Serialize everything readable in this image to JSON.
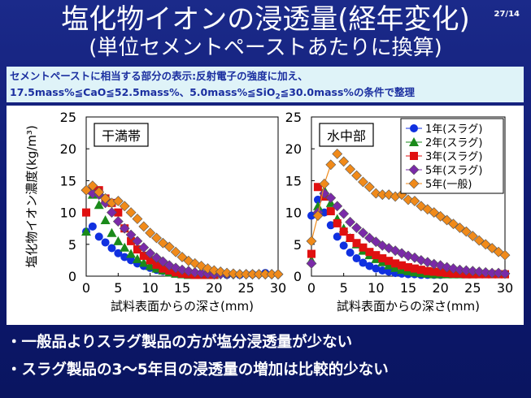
{
  "slide": {
    "title": "塩化物イオンの浸透量(経年変化)",
    "subtitle": "(単位セメントペーストあたりに換算)",
    "page": "27/14"
  },
  "note": {
    "line1": "セメントペーストに相当する部分の表示:反射電子の強度に加え、",
    "line2_a": "17.5mass%≦CaO≦52.5mass%、5.0mass%≦SiO",
    "line2_sub": "2",
    "line2_b": "≦30.0mass%の条件で整理"
  },
  "bullets": [
    "・一般品よりスラグ製品の方が塩分浸透量が少ない",
    "・スラグ製品の3〜5年目の浸透量の増加は比較的少ない"
  ],
  "chart_data": [
    {
      "type": "scatter",
      "panel_label": "干満帯",
      "ylabel": "塩化物イオン濃度(kg/m³)",
      "xlabel": "試料表面からの深さ(mm)",
      "xlim": [
        0,
        30
      ],
      "ylim": [
        0,
        25
      ],
      "xticks": [
        0,
        5,
        10,
        15,
        20,
        25,
        30
      ],
      "yticks": [
        0,
        5,
        10,
        15,
        20,
        25
      ],
      "series": [
        {
          "name": "1年(スラグ)",
          "color": "#1030e0",
          "marker": "circle",
          "x": [
            0,
            1,
            2,
            3,
            4,
            5,
            6,
            7,
            8,
            9,
            10,
            11,
            12,
            13,
            14,
            15,
            16,
            17,
            18,
            19,
            20,
            22,
            24,
            26,
            28
          ],
          "y": [
            7,
            7.8,
            6.2,
            5.3,
            4.4,
            3.6,
            3,
            2.5,
            2,
            1.6,
            1.3,
            1.0,
            0.8,
            0.6,
            0.5,
            0.4,
            0.3,
            0.3,
            0.2,
            0.2,
            0.2,
            0.2,
            0.2,
            0.3,
            0.5
          ]
        },
        {
          "name": "2年(スラグ)",
          "color": "#1a8a1a",
          "marker": "triangle",
          "x": [
            0,
            1,
            2,
            3,
            4,
            5,
            6,
            7,
            8,
            9,
            10,
            11,
            12,
            13,
            14,
            15,
            16,
            17,
            18,
            19,
            20
          ],
          "y": [
            7,
            12.8,
            11.2,
            8.8,
            6.8,
            5.5,
            4.5,
            3.5,
            2.7,
            2.1,
            1.6,
            1.2,
            0.9,
            0.6,
            0.4,
            0.3,
            0.2,
            0.2,
            0.2,
            0.2,
            0.2
          ]
        },
        {
          "name": "3年(スラグ)",
          "color": "#e01010",
          "marker": "square",
          "x": [
            0,
            1,
            2,
            3,
            4,
            5,
            6,
            7,
            8,
            9,
            10,
            11,
            12,
            13,
            14,
            15,
            16,
            17,
            18,
            19,
            20
          ],
          "y": [
            10,
            13.5,
            13.5,
            12.2,
            11.5,
            10,
            7.5,
            5.5,
            4.2,
            3.2,
            2.5,
            1.8,
            1.2,
            0.9,
            0.6,
            0.4,
            0.3,
            0.2,
            0.2,
            0.2,
            0.2
          ]
        },
        {
          "name": "5年(スラグ)",
          "color": "#7a2aa8",
          "marker": "diamond",
          "x": [
            0,
            1,
            2,
            3,
            4,
            5,
            6,
            7,
            8,
            9,
            10,
            11,
            12,
            13,
            14,
            15,
            16,
            17,
            18,
            19,
            20,
            21,
            22,
            23,
            24,
            25,
            26,
            27,
            28,
            29,
            30
          ],
          "y": [
            13.5,
            13,
            12.8,
            11.5,
            10,
            8.6,
            7.5,
            6.5,
            5.5,
            4.5,
            3.6,
            2.9,
            2.3,
            1.7,
            1.3,
            1.0,
            0.8,
            0.6,
            0.5,
            0.4,
            0.3,
            0.3,
            0.3,
            0.3,
            0.3,
            0.3,
            0.3,
            0.3,
            0.3,
            0.3,
            0.3
          ]
        },
        {
          "name": "5年(一般)",
          "color": "#f08a1a",
          "marker": "diamond",
          "x": [
            0,
            1,
            2,
            3,
            4,
            5,
            6,
            7,
            8,
            9,
            10,
            11,
            12,
            13,
            14,
            15,
            16,
            17,
            18,
            19,
            20,
            21,
            22,
            23,
            24,
            25,
            26,
            27,
            28,
            29,
            30
          ],
          "y": [
            13.5,
            14.2,
            13.2,
            12.2,
            11.5,
            11.8,
            11,
            10,
            9,
            7.8,
            6.8,
            6,
            5.2,
            4.6,
            3.8,
            3,
            2.4,
            2,
            1.6,
            1.2,
            0.9,
            0.7,
            0.5,
            0.4,
            0.3,
            0.3,
            0.3,
            0.3,
            0.3,
            0.3,
            0.3
          ]
        }
      ]
    },
    {
      "type": "scatter",
      "panel_label": "水中部",
      "xlabel": "試料表面からの深さ(mm)",
      "xlim": [
        0,
        30
      ],
      "ylim": [
        0,
        25
      ],
      "xticks": [
        0,
        5,
        10,
        15,
        20,
        25,
        30
      ],
      "yticks": [
        0,
        5,
        10,
        15,
        20,
        25
      ],
      "legend_position": "top-right",
      "series": [
        {
          "name": "1年(スラグ)",
          "color": "#1030e0",
          "marker": "circle",
          "x": [
            0,
            1,
            2,
            3,
            4,
            5,
            6,
            7,
            8,
            9,
            10,
            11,
            12,
            13,
            14,
            15,
            16,
            17,
            18,
            19,
            20
          ],
          "y": [
            9.5,
            12,
            10,
            8,
            6.2,
            4.8,
            3.7,
            2.8,
            2.1,
            1.6,
            1.2,
            0.9,
            0.7,
            0.5,
            0.4,
            0.3,
            0.3,
            0.2,
            0.2,
            0.2,
            0.2
          ]
        },
        {
          "name": "2年(スラグ)",
          "color": "#1a8a1a",
          "marker": "triangle",
          "x": [
            0,
            1,
            2,
            3,
            4,
            5,
            6,
            7,
            8,
            9,
            10,
            11,
            12,
            13,
            14,
            15,
            16,
            17,
            18,
            19,
            20,
            21,
            22,
            23,
            24,
            25
          ],
          "y": [
            2.5,
            11,
            13.5,
            11.5,
            9,
            7.5,
            6,
            5,
            4,
            3.3,
            2.7,
            2.2,
            1.7,
            1.3,
            1.0,
            0.8,
            0.6,
            0.5,
            0.4,
            0.3,
            0.3,
            0.3,
            0.3,
            0.3,
            0.3,
            0.3
          ]
        },
        {
          "name": "3年(スラグ)",
          "color": "#e01010",
          "marker": "square",
          "x": [
            0,
            1,
            2,
            3,
            4,
            5,
            6,
            7,
            8,
            9,
            10,
            11,
            12,
            13,
            14,
            15,
            16,
            17,
            18,
            19,
            20,
            21,
            22,
            23,
            24,
            25,
            26,
            27,
            28,
            29,
            30
          ],
          "y": [
            3.5,
            14,
            12.5,
            10.2,
            8.3,
            7,
            6,
            5.2,
            4.5,
            3.8,
            3.3,
            2.8,
            2.4,
            2.0,
            1.7,
            1.4,
            1.2,
            1.0,
            0.8,
            0.7,
            0.6,
            0.5,
            0.4,
            0.4,
            0.3,
            0.3,
            0.3,
            0.3,
            0.3,
            0.3,
            0.3
          ]
        },
        {
          "name": "5年(スラグ)",
          "color": "#7a2aa8",
          "marker": "diamond",
          "x": [
            0,
            1,
            2,
            3,
            4,
            5,
            6,
            7,
            8,
            9,
            10,
            11,
            12,
            13,
            14,
            15,
            16,
            17,
            18,
            19,
            20,
            21,
            22,
            23,
            24,
            25,
            26,
            27,
            28,
            29,
            30
          ],
          "y": [
            2,
            10,
            13,
            12.3,
            11,
            9.8,
            8.5,
            7.6,
            6.8,
            6,
            5.4,
            4.8,
            4.4,
            4,
            3.6,
            3.2,
            2.9,
            2.5,
            2.2,
            1.9,
            1.7,
            1.4,
            1.2,
            1.0,
            0.9,
            0.8,
            0.7,
            0.6,
            0.5,
            0.5,
            0.4
          ]
        },
        {
          "name": "5年(一般)",
          "color": "#f08a1a",
          "marker": "diamond",
          "x": [
            0,
            1,
            2,
            3,
            4,
            5,
            6,
            7,
            8,
            9,
            10,
            11,
            12,
            13,
            14,
            15,
            16,
            17,
            18,
            19,
            20,
            21,
            22,
            23,
            24,
            25,
            26,
            27,
            28,
            29,
            30
          ],
          "y": [
            5.5,
            9.5,
            14.5,
            17.5,
            19.2,
            18,
            16.8,
            15.8,
            14.8,
            14,
            13,
            12.8,
            12.8,
            12.5,
            12.8,
            12,
            11.8,
            11,
            10.5,
            10,
            9.4,
            8.8,
            8.2,
            7.6,
            7,
            6.3,
            5.6,
            5,
            4.4,
            3.8,
            3.3
          ]
        }
      ]
    }
  ]
}
